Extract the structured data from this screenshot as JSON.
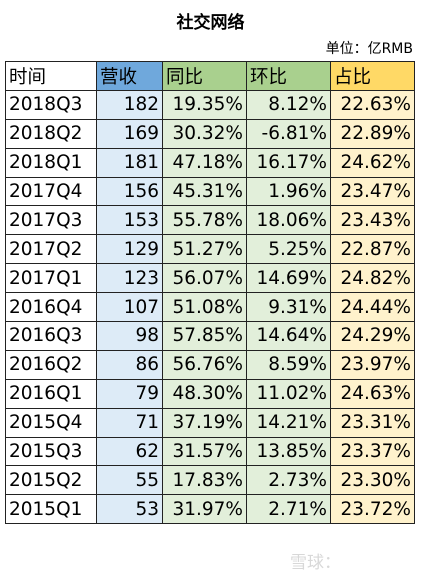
{
  "header": {
    "title": "社交网络",
    "unit": "单位：亿RMB"
  },
  "table": {
    "columns": [
      "时间",
      "营收",
      "同比",
      "环比",
      "占比"
    ],
    "rows": [
      [
        "2018Q3",
        "182",
        "19.35%",
        "8.12%",
        "22.63%"
      ],
      [
        "2018Q2",
        "169",
        "30.32%",
        "-6.81%",
        "22.89%"
      ],
      [
        "2018Q1",
        "181",
        "47.18%",
        "16.17%",
        "24.62%"
      ],
      [
        "2017Q4",
        "156",
        "45.31%",
        "1.96%",
        "23.47%"
      ],
      [
        "2017Q3",
        "153",
        "55.78%",
        "18.06%",
        "23.43%"
      ],
      [
        "2017Q2",
        "129",
        "51.27%",
        "5.25%",
        "22.87%"
      ],
      [
        "2017Q1",
        "123",
        "56.07%",
        "14.69%",
        "24.82%"
      ],
      [
        "2016Q4",
        "107",
        "51.08%",
        "9.31%",
        "24.44%"
      ],
      [
        "2016Q3",
        "98",
        "57.85%",
        "14.64%",
        "24.29%"
      ],
      [
        "2016Q2",
        "86",
        "56.76%",
        "8.59%",
        "23.97%"
      ],
      [
        "2016Q1",
        "79",
        "48.30%",
        "11.02%",
        "24.63%"
      ],
      [
        "2015Q4",
        "71",
        "37.19%",
        "14.21%",
        "23.31%"
      ],
      [
        "2015Q3",
        "62",
        "31.57%",
        "13.85%",
        "23.37%"
      ],
      [
        "2015Q2",
        "55",
        "17.83%",
        "2.73%",
        "23.30%"
      ],
      [
        "2015Q1",
        "53",
        "31.97%",
        "2.71%",
        "23.72%"
      ]
    ]
  },
  "watermark": "雪球："
}
